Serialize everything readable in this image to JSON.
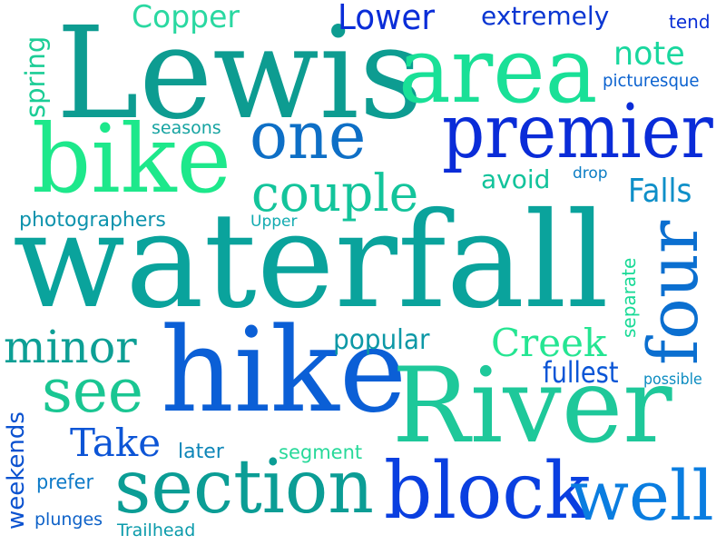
{
  "words": [
    {
      "text": "waterfall",
      "color": "#0aa39c"
    },
    {
      "text": "Lewis",
      "color": "#0d9c91"
    },
    {
      "text": "hike",
      "color": "#0b5fd6"
    },
    {
      "text": "River",
      "color": "#1ec89a"
    },
    {
      "text": "area",
      "color": "#19e097"
    },
    {
      "text": "bike",
      "color": "#1de88b"
    },
    {
      "text": "premier",
      "color": "#0a2cd8"
    },
    {
      "text": "one",
      "color": "#0e6fc6"
    },
    {
      "text": "section",
      "color": "#0b9d95"
    },
    {
      "text": "block",
      "color": "#0a3fe0"
    },
    {
      "text": "well",
      "color": "#0a7de0"
    },
    {
      "text": "four",
      "color": "#0b6fd0"
    },
    {
      "text": "couple",
      "color": "#13c49b"
    },
    {
      "text": "see",
      "color": "#1ac692"
    },
    {
      "text": "minor",
      "color": "#0d9f95"
    },
    {
      "text": "Creek",
      "color": "#25e592"
    },
    {
      "text": "Take",
      "color": "#0d55d6"
    },
    {
      "text": "Copper",
      "color": "#2ad8a1"
    },
    {
      "text": "Lower",
      "color": "#0a2dd8"
    },
    {
      "text": "note",
      "color": "#18d79e"
    },
    {
      "text": "Falls",
      "color": "#0e8fc8"
    },
    {
      "text": "popular",
      "color": "#0d98a6"
    },
    {
      "text": "fullest",
      "color": "#0a55d6"
    },
    {
      "text": "extremely",
      "color": "#0a36d2"
    },
    {
      "text": "spring",
      "color": "#1ccd96"
    },
    {
      "text": "weekends",
      "color": "#0b52d0"
    },
    {
      "text": "avoid",
      "color": "#12c39b"
    },
    {
      "text": "photographers",
      "color": "#0e93ad"
    },
    {
      "text": "prefer",
      "color": "#0d7ac8"
    },
    {
      "text": "separate",
      "color": "#18da96"
    },
    {
      "text": "later",
      "color": "#0e86b8"
    },
    {
      "text": "segment",
      "color": "#28d99a"
    },
    {
      "text": "plunges",
      "color": "#0e62c8"
    },
    {
      "text": "Trailhead",
      "color": "#0b9bab"
    },
    {
      "text": "seasons",
      "color": "#15a3a1"
    },
    {
      "text": "picturesque",
      "color": "#0b62cf"
    },
    {
      "text": "tend",
      "color": "#0a2fd6"
    },
    {
      "text": "drop",
      "color": "#0b7dc4"
    },
    {
      "text": "Upper",
      "color": "#11aab0"
    },
    {
      "text": "possible",
      "color": "#0c8cc0"
    }
  ]
}
